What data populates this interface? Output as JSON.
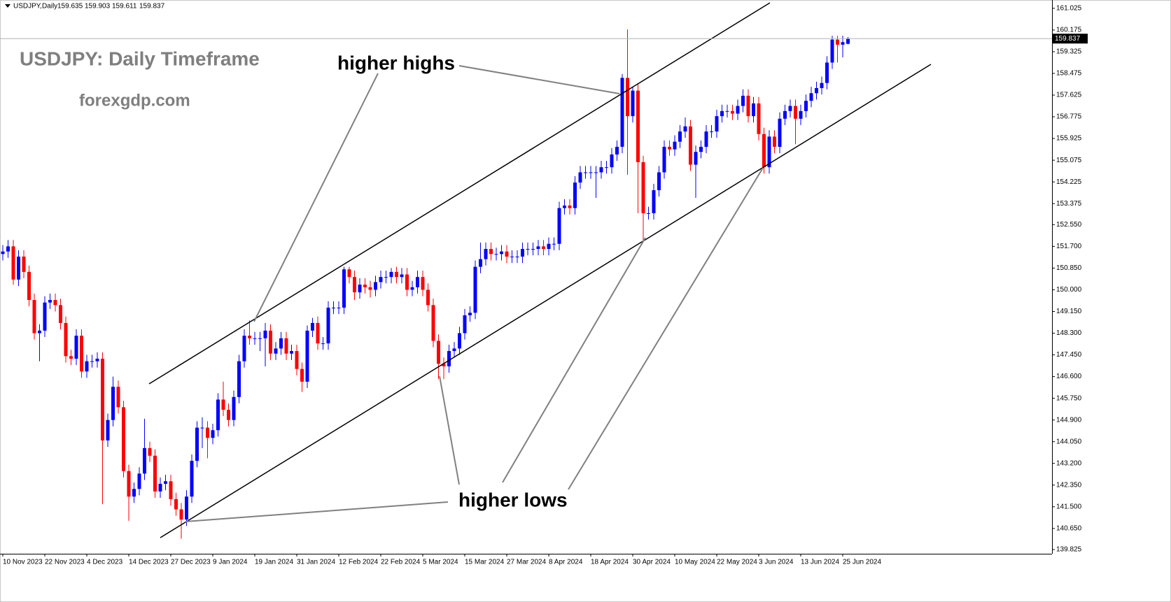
{
  "chart_data": {
    "type": "candlestick",
    "symbol": "USDJPY,Daily",
    "title": "USDJPY: Daily Timeframe",
    "subtitle": "forexgdp.com",
    "annotations": [
      "higher highs",
      "higher lows"
    ],
    "up_color": "#0000ff",
    "down_color": "#ff0000",
    "ylim": [
      139.66,
      161.35
    ],
    "yticks": [
      161.025,
      160.175,
      159.325,
      158.475,
      157.625,
      156.775,
      155.925,
      155.075,
      154.225,
      153.375,
      {
        "value": 152.55,
        "label": "152.550"
      },
      {
        "value": 151.7,
        "label": "151.700"
      },
      {
        "value": 150.85,
        "label": "150.850"
      },
      {
        "value": 150,
        "label": "150.000"
      },
      {
        "value": 149.15,
        "label": "149.150"
      },
      {
        "value": 148.3,
        "label": "148.300"
      },
      {
        "value": 147.45,
        "label": "147.450"
      },
      {
        "value": 146.6,
        "label": "146.600"
      },
      {
        "value": 145.75,
        "label": "145.750"
      },
      {
        "value": 144.9,
        "label": "144.900"
      },
      {
        "value": 144.05,
        "label": "144.050"
      },
      {
        "value": 143.2,
        "label": "143.200"
      },
      {
        "value": 142.35,
        "label": "142.350"
      },
      {
        "value": 141.5,
        "label": "141.500"
      },
      {
        "value": 140.65,
        "label": "140.650"
      },
      139.825
    ],
    "categories": [
      "10 Nov 2023",
      null,
      null,
      null,
      null,
      null,
      null,
      null,
      "22 Nov 2023",
      null,
      null,
      null,
      null,
      null,
      null,
      null,
      "4 Dec 2023",
      null,
      null,
      null,
      null,
      null,
      null,
      null,
      "14 Dec 2023",
      null,
      null,
      null,
      null,
      null,
      null,
      null,
      "27 Dec 2023",
      null,
      null,
      null,
      null,
      null,
      null,
      null,
      "9 Jan 2024",
      null,
      null,
      null,
      null,
      null,
      null,
      null,
      "19 Jan 2024",
      null,
      null,
      null,
      null,
      null,
      null,
      null,
      "31 Jan 2024",
      null,
      null,
      null,
      null,
      null,
      null,
      null,
      "12 Feb 2024",
      null,
      null,
      null,
      null,
      null,
      null,
      null,
      "22 Feb 2024",
      null,
      null,
      null,
      null,
      null,
      null,
      null,
      "5 Mar 2024",
      null,
      null,
      null,
      null,
      null,
      null,
      null,
      "15 Mar 2024",
      null,
      null,
      null,
      null,
      null,
      null,
      null,
      "27 Mar 2024",
      null,
      null,
      null,
      null,
      null,
      null,
      null,
      "8 Apr 2024",
      null,
      null,
      null,
      null,
      null,
      null,
      null,
      "18 Apr 2024",
      null,
      null,
      null,
      null,
      null,
      null,
      null,
      "30 Apr 2024",
      null,
      null,
      null,
      null,
      null,
      null,
      null,
      "10 May 2024",
      null,
      null,
      null,
      null,
      null,
      null,
      null,
      "22 May 2024",
      null,
      null,
      null,
      null,
      null,
      null,
      null,
      "3 Jun 2024",
      null,
      null,
      null,
      null,
      null,
      null,
      null,
      "13 Jun 2024",
      null,
      null,
      null,
      null,
      null,
      null,
      null,
      "25 Jun 2024",
      null
    ],
    "candles": [
      [
        151.4,
        151.75,
        151.15,
        151.5
      ],
      [
        151.5,
        151.95,
        151.25,
        151.7
      ],
      [
        151.7,
        151.95,
        150.2,
        150.4
      ],
      [
        150.4,
        151.55,
        150.15,
        151.3
      ],
      [
        151.3,
        151.55,
        150.45,
        150.7
      ],
      [
        150.7,
        150.95,
        149.35,
        149.6
      ],
      [
        149.6,
        149.85,
        148.05,
        148.3
      ],
      [
        148.3,
        148.65,
        147.2,
        148.4
      ],
      [
        148.4,
        149.75,
        148.15,
        149.5
      ],
      [
        149.5,
        149.85,
        149.25,
        149.6
      ],
      [
        149.6,
        149.85,
        149.15,
        149.4
      ],
      [
        149.4,
        149.65,
        148.45,
        148.7
      ],
      [
        148.7,
        148.95,
        147.15,
        147.4
      ],
      [
        147.4,
        147.65,
        147.05,
        147.3
      ],
      [
        147.3,
        148.45,
        147.05,
        148.2
      ],
      [
        148.2,
        148.45,
        146.55,
        146.8
      ],
      [
        146.8,
        147.45,
        146.55,
        147.2
      ],
      [
        147.2,
        147.45,
        146.95,
        147.2
      ],
      [
        147.2,
        147.55,
        146.95,
        147.3
      ],
      [
        147.3,
        147.55,
        141.6,
        144.1
      ],
      [
        144.1,
        145.15,
        143.85,
        144.9
      ],
      [
        144.9,
        146.6,
        144.65,
        146.2
      ],
      [
        146.2,
        146.45,
        145.15,
        145.4
      ],
      [
        145.4,
        145.65,
        142.65,
        142.9
      ],
      [
        142.9,
        143.15,
        140.95,
        141.9
      ],
      [
        141.9,
        142.45,
        141.65,
        142.2
      ],
      [
        142.2,
        143.05,
        141.95,
        142.8
      ],
      [
        142.8,
        144.95,
        142.55,
        143.8
      ],
      [
        143.8,
        144.05,
        143.25,
        143.5
      ],
      [
        143.5,
        143.75,
        141.85,
        142.1
      ],
      [
        142.1,
        142.65,
        141.85,
        142.4
      ],
      [
        142.4,
        142.75,
        142.15,
        142.5
      ],
      [
        142.5,
        142.75,
        141.55,
        141.8
      ],
      [
        141.8,
        142.05,
        141.15,
        141.4
      ],
      [
        141.4,
        141.65,
        140.25,
        141.0
      ],
      [
        141.0,
        142.15,
        140.75,
        141.9
      ],
      [
        141.9,
        143.55,
        141.65,
        143.3
      ],
      [
        143.3,
        144.85,
        143.05,
        144.6
      ],
      [
        144.6,
        145.0,
        143.8,
        144.6
      ],
      [
        144.6,
        144.85,
        143.4,
        144.2
      ],
      [
        144.2,
        144.75,
        143.95,
        144.5
      ],
      [
        144.5,
        145.95,
        144.25,
        145.7
      ],
      [
        145.7,
        146.4,
        145.05,
        145.3
      ],
      [
        145.3,
        145.55,
        144.65,
        144.9
      ],
      [
        144.9,
        146.05,
        144.65,
        145.8
      ],
      [
        145.8,
        147.45,
        145.55,
        147.2
      ],
      [
        147.2,
        148.45,
        146.95,
        148.2
      ],
      [
        148.2,
        148.8,
        147.85,
        148.1
      ],
      [
        148.1,
        148.35,
        147.85,
        148.1
      ],
      [
        148.1,
        148.35,
        147.6,
        148.1
      ],
      [
        148.1,
        148.7,
        147.0,
        148.4
      ],
      [
        148.4,
        148.65,
        147.25,
        147.5
      ],
      [
        147.5,
        147.95,
        147.25,
        147.7
      ],
      [
        147.7,
        148.35,
        147.45,
        148.1
      ],
      [
        148.1,
        148.35,
        147.25,
        147.5
      ],
      [
        147.5,
        147.85,
        147.25,
        147.6
      ],
      [
        147.6,
        147.85,
        146.65,
        146.9
      ],
      [
        146.9,
        147.15,
        146.0,
        146.4
      ],
      [
        146.4,
        148.6,
        146.15,
        148.4
      ],
      [
        148.4,
        148.9,
        148.15,
        148.7
      ],
      [
        148.7,
        148.95,
        147.65,
        147.9
      ],
      [
        147.9,
        148.15,
        147.65,
        147.9
      ],
      [
        147.9,
        149.55,
        147.65,
        149.3
      ],
      [
        149.3,
        149.55,
        149.05,
        149.3
      ],
      [
        149.3,
        149.55,
        149.05,
        149.3
      ],
      [
        149.3,
        150.9,
        149.05,
        150.8
      ],
      [
        150.8,
        150.9,
        150.25,
        150.5
      ],
      [
        150.5,
        150.75,
        149.6,
        149.9
      ],
      [
        149.9,
        150.45,
        149.65,
        150.2
      ],
      [
        150.2,
        150.45,
        149.85,
        150.1
      ],
      [
        150.1,
        150.35,
        149.7,
        150.0
      ],
      [
        150.0,
        150.55,
        149.75,
        150.3
      ],
      [
        150.3,
        150.75,
        150.05,
        150.5
      ],
      [
        150.5,
        150.75,
        150.25,
        150.5
      ],
      [
        150.5,
        150.85,
        150.25,
        150.7
      ],
      [
        150.7,
        150.9,
        150.25,
        150.5
      ],
      [
        150.5,
        150.85,
        150.25,
        150.6
      ],
      [
        150.6,
        150.85,
        149.75,
        150.0
      ],
      [
        150.0,
        150.35,
        149.75,
        150.1
      ],
      [
        150.1,
        150.75,
        149.85,
        150.5
      ],
      [
        150.5,
        150.75,
        149.75,
        150.0
      ],
      [
        150.0,
        150.25,
        149.15,
        149.4
      ],
      [
        149.4,
        149.65,
        147.75,
        148.0
      ],
      [
        148.0,
        148.25,
        146.5,
        147.1
      ],
      [
        147.1,
        147.35,
        146.5,
        147.0
      ],
      [
        147.0,
        147.85,
        146.75,
        147.6
      ],
      [
        147.6,
        147.95,
        147.35,
        147.7
      ],
      [
        147.7,
        148.55,
        147.45,
        148.3
      ],
      [
        148.3,
        149.25,
        148.05,
        149.0
      ],
      [
        149.0,
        149.35,
        148.75,
        149.1
      ],
      [
        149.1,
        151.15,
        148.85,
        150.9
      ],
      [
        150.9,
        151.85,
        150.65,
        151.2
      ],
      [
        151.2,
        151.85,
        150.95,
        151.6
      ],
      [
        151.6,
        151.85,
        151.15,
        151.4
      ],
      [
        151.4,
        151.65,
        151.15,
        151.4
      ],
      [
        151.4,
        151.75,
        151.15,
        151.5
      ],
      [
        151.5,
        151.75,
        151.05,
        151.3
      ],
      [
        151.3,
        151.55,
        151.05,
        151.3
      ],
      [
        151.3,
        151.55,
        151.05,
        151.3
      ],
      [
        151.3,
        151.85,
        151.05,
        151.6
      ],
      [
        151.6,
        151.85,
        151.35,
        151.6
      ],
      [
        151.6,
        151.85,
        151.35,
        151.6
      ],
      [
        151.6,
        151.95,
        151.35,
        151.7
      ],
      [
        151.7,
        151.95,
        151.35,
        151.6
      ],
      [
        151.6,
        152.05,
        151.35,
        151.8
      ],
      [
        151.8,
        152.05,
        151.55,
        151.8
      ],
      [
        151.8,
        153.45,
        151.55,
        153.2
      ],
      [
        153.2,
        153.55,
        152.95,
        153.3
      ],
      [
        153.3,
        153.55,
        152.95,
        153.2
      ],
      [
        153.2,
        154.45,
        152.95,
        154.2
      ],
      [
        154.2,
        154.85,
        153.95,
        154.6
      ],
      [
        154.6,
        154.85,
        154.35,
        154.6
      ],
      [
        154.6,
        154.85,
        154.35,
        154.6
      ],
      [
        154.6,
        154.85,
        153.6,
        154.6
      ],
      [
        154.6,
        155.05,
        154.35,
        154.8
      ],
      [
        154.8,
        155.05,
        154.55,
        154.8
      ],
      [
        154.8,
        155.55,
        154.55,
        155.3
      ],
      [
        155.3,
        155.85,
        155.05,
        155.6
      ],
      [
        155.6,
        158.45,
        155.35,
        158.3
      ],
      [
        158.3,
        160.2,
        154.5,
        156.8
      ],
      [
        156.8,
        157.95,
        156.55,
        157.8
      ],
      [
        157.8,
        158.05,
        153.0,
        155.0
      ],
      [
        155.0,
        155.25,
        151.9,
        153.0
      ],
      [
        153.0,
        153.25,
        152.75,
        153.0
      ],
      [
        153.0,
        154.15,
        152.75,
        153.9
      ],
      [
        153.9,
        154.85,
        153.65,
        154.6
      ],
      [
        154.6,
        155.85,
        154.35,
        155.6
      ],
      [
        155.6,
        155.85,
        155.25,
        155.5
      ],
      [
        155.5,
        156.05,
        155.25,
        155.8
      ],
      [
        155.8,
        156.45,
        155.55,
        156.2
      ],
      [
        156.2,
        156.75,
        155.95,
        156.4
      ],
      [
        156.4,
        156.65,
        154.65,
        154.9
      ],
      [
        154.9,
        155.65,
        153.6,
        155.4
      ],
      [
        155.4,
        155.85,
        155.15,
        155.6
      ],
      [
        155.6,
        156.45,
        155.35,
        156.2
      ],
      [
        156.2,
        156.45,
        155.95,
        156.2
      ],
      [
        156.2,
        157.05,
        155.95,
        156.8
      ],
      [
        156.8,
        157.25,
        156.55,
        157.0
      ],
      [
        157.0,
        157.25,
        156.75,
        157.0
      ],
      [
        157.0,
        157.25,
        156.65,
        156.9
      ],
      [
        156.9,
        157.45,
        156.65,
        157.2
      ],
      [
        157.2,
        157.85,
        156.95,
        157.6
      ],
      [
        157.6,
        157.85,
        156.55,
        156.8
      ],
      [
        156.8,
        157.55,
        156.55,
        157.3
      ],
      [
        157.3,
        157.55,
        155.85,
        156.1
      ],
      [
        156.1,
        156.35,
        154.55,
        154.8
      ],
      [
        154.8,
        156.25,
        154.55,
        156.0
      ],
      [
        156.0,
        156.25,
        155.35,
        155.6
      ],
      [
        155.6,
        156.95,
        155.35,
        156.7
      ],
      [
        156.7,
        157.25,
        156.45,
        157.0
      ],
      [
        157.0,
        157.45,
        156.75,
        157.2
      ],
      [
        157.2,
        157.45,
        155.7,
        156.7
      ],
      [
        156.7,
        157.25,
        156.45,
        157.0
      ],
      [
        157.0,
        157.65,
        156.75,
        157.4
      ],
      [
        157.4,
        157.95,
        157.15,
        157.7
      ],
      [
        157.7,
        158.15,
        157.45,
        157.9
      ],
      [
        157.9,
        158.35,
        157.65,
        158.1
      ],
      [
        158.1,
        159.15,
        157.85,
        158.9
      ],
      [
        158.9,
        159.95,
        158.65,
        159.8
      ],
      [
        159.8,
        159.95,
        158.9,
        159.6
      ],
      [
        159.6,
        159.95,
        159.1,
        159.7
      ],
      [
        159.635,
        159.903,
        159.611,
        159.837
      ]
    ]
  }
}
